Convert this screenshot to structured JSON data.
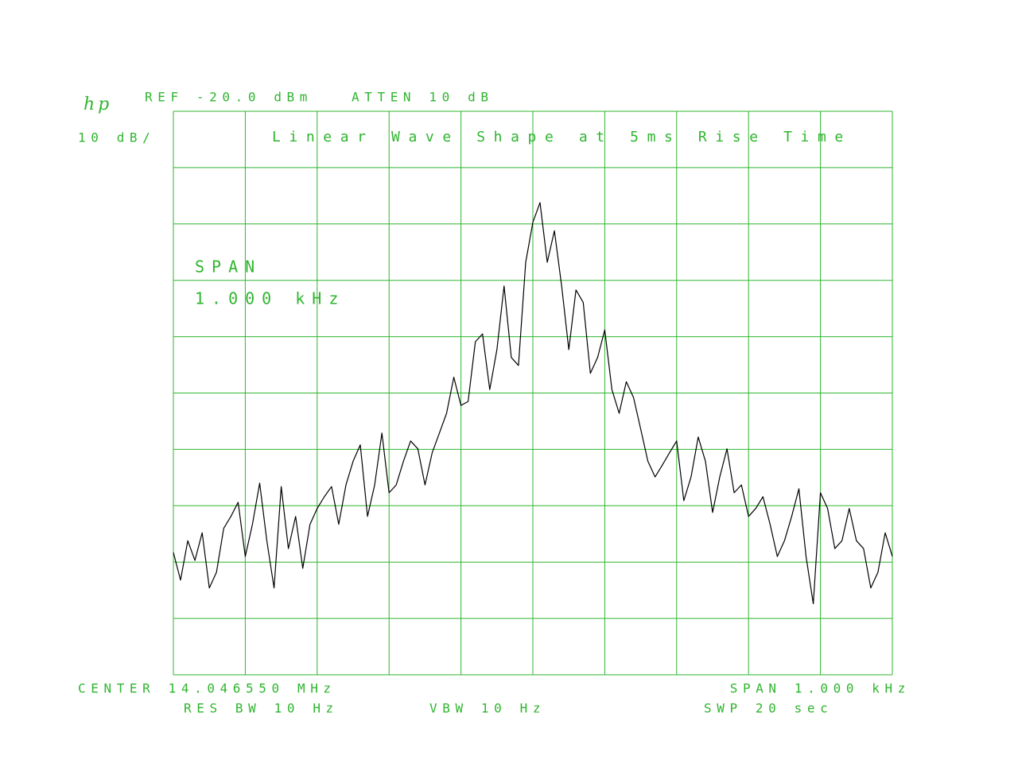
{
  "chart_data": {
    "type": "line",
    "title": "Linear Wave Shape at 5ms Rise Time",
    "logo": "hp",
    "ref_level": "REF -20.0 dBm",
    "attenuation": "ATTEN 10 dB",
    "scale": "10 dB/",
    "span_annotation": [
      "SPAN",
      "1.000 kHz"
    ],
    "center": "CENTER 14.046550 MHz",
    "span": "SPAN 1.000 kHz",
    "res_bw": "RES BW 10 Hz",
    "vbw": "VBW 10 Hz",
    "sweep": "SWP 20  sec",
    "grid": true,
    "grid_color": "#2fb52f",
    "text_color": "#2fb52f",
    "series": [
      {
        "color": "#000000",
        "x": [
          14.04605,
          14.04606,
          14.04607,
          14.04608,
          14.04609,
          14.0461,
          14.04611,
          14.04612,
          14.04613,
          14.04614,
          14.04615,
          14.04616,
          14.04617,
          14.04618,
          14.04619,
          14.0462,
          14.04621,
          14.04622,
          14.04623,
          14.04624,
          14.04625,
          14.04626,
          14.04627,
          14.04628,
          14.04629,
          14.0463,
          14.04631,
          14.04632,
          14.04633,
          14.04634,
          14.04635,
          14.04636,
          14.04637,
          14.04638,
          14.04639,
          14.0464,
          14.04641,
          14.04642,
          14.04643,
          14.04644,
          14.04645,
          14.04646,
          14.04647,
          14.04648,
          14.04649,
          14.0465,
          14.04651,
          14.04652,
          14.04653,
          14.04654,
          14.04655,
          14.04656,
          14.04657,
          14.04658,
          14.04659,
          14.0466,
          14.04661,
          14.04662,
          14.04663,
          14.04664,
          14.04665,
          14.04666,
          14.04667,
          14.04668,
          14.04669,
          14.0467,
          14.04671,
          14.04672,
          14.04673,
          14.04674,
          14.04675,
          14.04676,
          14.04677,
          14.04678,
          14.04679,
          14.0468,
          14.04681,
          14.04682,
          14.04683,
          14.04684,
          14.04685,
          14.04686,
          14.04687,
          14.04688,
          14.04689,
          14.0469,
          14.04691,
          14.04692,
          14.04693,
          14.04694,
          14.04695,
          14.04696,
          14.04697,
          14.04698,
          14.04699,
          14.047,
          14.04701,
          14.04702,
          14.04703,
          14.04704,
          14.04705
        ],
        "values": [
          -98.3,
          -103.2,
          -96.2,
          -99.7,
          -94.8,
          -104.6,
          -101.8,
          -94.0,
          -91.9,
          -89.4,
          -99.0,
          -93.3,
          -86.0,
          -96.2,
          -104.6,
          -86.6,
          -97.6,
          -91.9,
          -101.1,
          -93.3,
          -90.5,
          -88.4,
          -86.6,
          -93.3,
          -86.3,
          -82.1,
          -79.2,
          -91.9,
          -86.3,
          -77.1,
          -87.7,
          -86.3,
          -82.1,
          -78.5,
          -79.9,
          -86.3,
          -80.6,
          -77.1,
          -73.6,
          -67.2,
          -72.2,
          -71.5,
          -60.9,
          -59.5,
          -69.4,
          -62.3,
          -51.0,
          -63.7,
          -65.1,
          -46.8,
          -39.7,
          -36.2,
          -46.8,
          -41.2,
          -51.0,
          -62.3,
          -51.7,
          -53.9,
          -66.5,
          -63.7,
          -58.8,
          -69.4,
          -73.6,
          -68.0,
          -70.8,
          -76.4,
          -82.1,
          -84.9,
          -82.8,
          -80.6,
          -78.5,
          -89.1,
          -84.9,
          -77.8,
          -82.1,
          -91.2,
          -84.9,
          -79.9,
          -87.7,
          -86.3,
          -91.9,
          -90.5,
          -88.4,
          -93.3,
          -99.0,
          -96.2,
          -91.9,
          -87.0,
          -99.0,
          -107.4,
          -87.7,
          -90.5,
          -97.6,
          -96.2,
          -90.5,
          -96.2,
          -97.6,
          -104.6,
          -101.8,
          -94.8,
          -99.0
        ]
      }
    ],
    "xlim": [
      14.04605,
      14.04705
    ],
    "xticks": [
      14.04605,
      14.04615,
      14.04625,
      14.04635,
      14.04645,
      14.04655,
      14.04665,
      14.04675,
      14.04685,
      14.04695,
      14.04705
    ],
    "ylim": [
      -120,
      -20
    ],
    "yticks": [
      -120,
      -110,
      -100,
      -90,
      -80,
      -70,
      -60,
      -50,
      -40,
      -30,
      -20
    ]
  }
}
